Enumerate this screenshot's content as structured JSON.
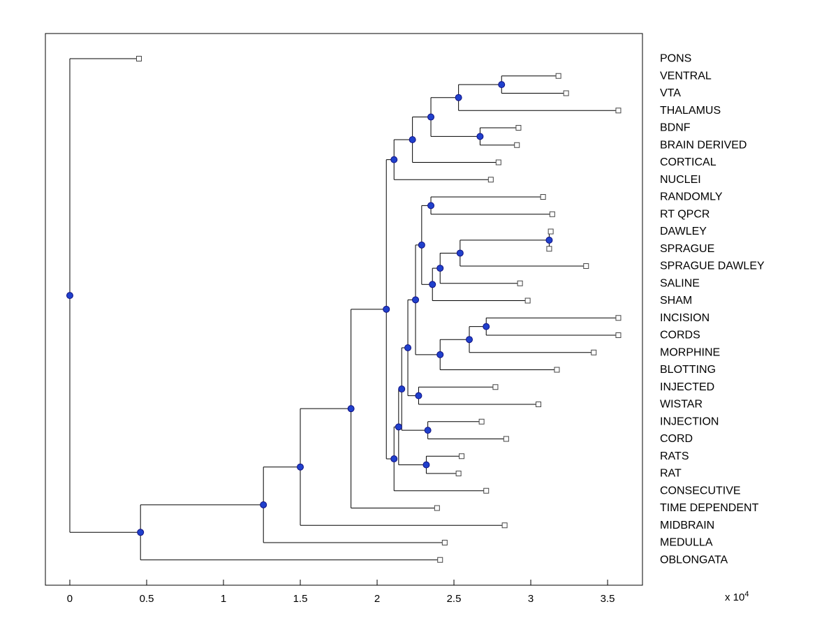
{
  "figure": {
    "axis_multiplier_label": "x 10",
    "axis_multiplier_exponent": "4"
  },
  "colors": {
    "branch_line": "#000000",
    "internal_node_fill": "#2040cc",
    "internal_node_edge": "#101080",
    "leaf_marker_fill": "#ffffff",
    "leaf_marker_edge": "#444444",
    "axis_box": "#000000",
    "background": "#ffffff"
  },
  "chart_data": {
    "type": "dendrogram",
    "orientation": "horizontal",
    "title": "",
    "xlabel": "",
    "ylabel": "",
    "grid": false,
    "x_axis": {
      "xlim": [
        -0.159,
        3.727
      ],
      "tick_values": [
        0,
        0.5,
        1,
        1.5,
        2,
        2.5,
        3,
        3.5
      ],
      "tick_labels": [
        "0",
        "0.5",
        "1",
        "1.5",
        "2",
        "2.5",
        "3",
        "3.5"
      ],
      "unit_multiplier": 10000
    },
    "leaves": [
      {
        "label": "PONS",
        "x": 0.45
      },
      {
        "label": "VENTRAL",
        "x": 3.18
      },
      {
        "label": "VTA",
        "x": 3.23
      },
      {
        "label": "THALAMUS",
        "x": 3.57
      },
      {
        "label": "BDNF",
        "x": 2.92
      },
      {
        "label": "BRAIN DERIVED",
        "x": 2.91
      },
      {
        "label": "CORTICAL",
        "x": 2.79
      },
      {
        "label": "NUCLEI",
        "x": 2.74
      },
      {
        "label": "RANDOMLY",
        "x": 3.08
      },
      {
        "label": "RT QPCR",
        "x": 3.14
      },
      {
        "label": "DAWLEY",
        "x": 3.13
      },
      {
        "label": "SPRAGUE",
        "x": 3.12
      },
      {
        "label": "SPRAGUE DAWLEY",
        "x": 3.36
      },
      {
        "label": "SALINE",
        "x": 2.93
      },
      {
        "label": "SHAM",
        "x": 2.98
      },
      {
        "label": "INCISION",
        "x": 3.57
      },
      {
        "label": "CORDS",
        "x": 3.57
      },
      {
        "label": "MORPHINE",
        "x": 3.41
      },
      {
        "label": "BLOTTING",
        "x": 3.17
      },
      {
        "label": "INJECTED",
        "x": 2.77
      },
      {
        "label": "WISTAR",
        "x": 3.05
      },
      {
        "label": "INJECTION",
        "x": 2.68
      },
      {
        "label": "CORD",
        "x": 2.84
      },
      {
        "label": "RATS",
        "x": 2.55
      },
      {
        "label": "RAT",
        "x": 2.53
      },
      {
        "label": "CONSECUTIVE",
        "x": 2.71
      },
      {
        "label": "TIME DEPENDENT",
        "x": 2.39
      },
      {
        "label": "MIDBRAIN",
        "x": 2.83
      },
      {
        "label": "MEDULLA",
        "x": 2.44
      },
      {
        "label": "OBLONGATA",
        "x": 2.41
      }
    ],
    "internal_nodes": [
      {
        "id": "n1",
        "x": 2.81,
        "children": [
          "VENTRAL",
          "VTA"
        ]
      },
      {
        "id": "n2",
        "x": 2.53,
        "children": [
          "n1",
          "THALAMUS"
        ]
      },
      {
        "id": "n3",
        "x": 2.67,
        "children": [
          "BDNF",
          "BRAIN DERIVED"
        ]
      },
      {
        "id": "n4",
        "x": 2.35,
        "children": [
          "n2",
          "n3"
        ]
      },
      {
        "id": "n5",
        "x": 2.23,
        "children": [
          "n4",
          "CORTICAL"
        ]
      },
      {
        "id": "n6",
        "x": 2.11,
        "children": [
          "n5",
          "NUCLEI"
        ]
      },
      {
        "id": "m1",
        "x": 2.35,
        "children": [
          "RANDOMLY",
          "RT QPCR"
        ]
      },
      {
        "id": "m2",
        "x": 3.12,
        "children": [
          "DAWLEY",
          "SPRAGUE"
        ]
      },
      {
        "id": "m3",
        "x": 2.54,
        "children": [
          "m2",
          "SPRAGUE DAWLEY"
        ]
      },
      {
        "id": "m4",
        "x": 2.41,
        "children": [
          "m3",
          "SALINE"
        ]
      },
      {
        "id": "m5",
        "x": 2.36,
        "children": [
          "m4",
          "SHAM"
        ]
      },
      {
        "id": "m6",
        "x": 2.29,
        "children": [
          "m1",
          "m5"
        ]
      },
      {
        "id": "p1",
        "x": 2.71,
        "children": [
          "INCISION",
          "CORDS"
        ]
      },
      {
        "id": "p2",
        "x": 2.6,
        "children": [
          "p1",
          "MORPHINE"
        ]
      },
      {
        "id": "p3",
        "x": 2.41,
        "children": [
          "p2",
          "BLOTTING"
        ]
      },
      {
        "id": "q1",
        "x": 2.25,
        "children": [
          "m6",
          "p3"
        ]
      },
      {
        "id": "s1",
        "x": 2.27,
        "children": [
          "INJECTED",
          "WISTAR"
        ]
      },
      {
        "id": "q2",
        "x": 2.2,
        "children": [
          "q1",
          "s1"
        ]
      },
      {
        "id": "t1",
        "x": 2.33,
        "children": [
          "INJECTION",
          "CORD"
        ]
      },
      {
        "id": "w1",
        "x": 2.16,
        "children": [
          "q2",
          "t1"
        ]
      },
      {
        "id": "u1",
        "x": 2.32,
        "children": [
          "RATS",
          "RAT"
        ]
      },
      {
        "id": "x1",
        "x": 2.14,
        "children": [
          "w1",
          "u1"
        ]
      },
      {
        "id": "y1",
        "x": 2.11,
        "children": [
          "x1",
          "CONSECUTIVE"
        ]
      },
      {
        "id": "r1",
        "x": 2.06,
        "children": [
          "n6",
          "y1"
        ]
      },
      {
        "id": "z1",
        "x": 1.83,
        "children": [
          "r1",
          "TIME DEPENDENT"
        ]
      },
      {
        "id": "z2",
        "x": 1.5,
        "children": [
          "z1",
          "MIDBRAIN"
        ]
      },
      {
        "id": "z3",
        "x": 1.26,
        "children": [
          "z2",
          "MEDULLA"
        ]
      },
      {
        "id": "z4",
        "x": 0.46,
        "children": [
          "z3",
          "OBLONGATA"
        ]
      },
      {
        "id": "root",
        "x": 0.0,
        "children": [
          "PONS",
          "z4"
        ]
      }
    ]
  }
}
